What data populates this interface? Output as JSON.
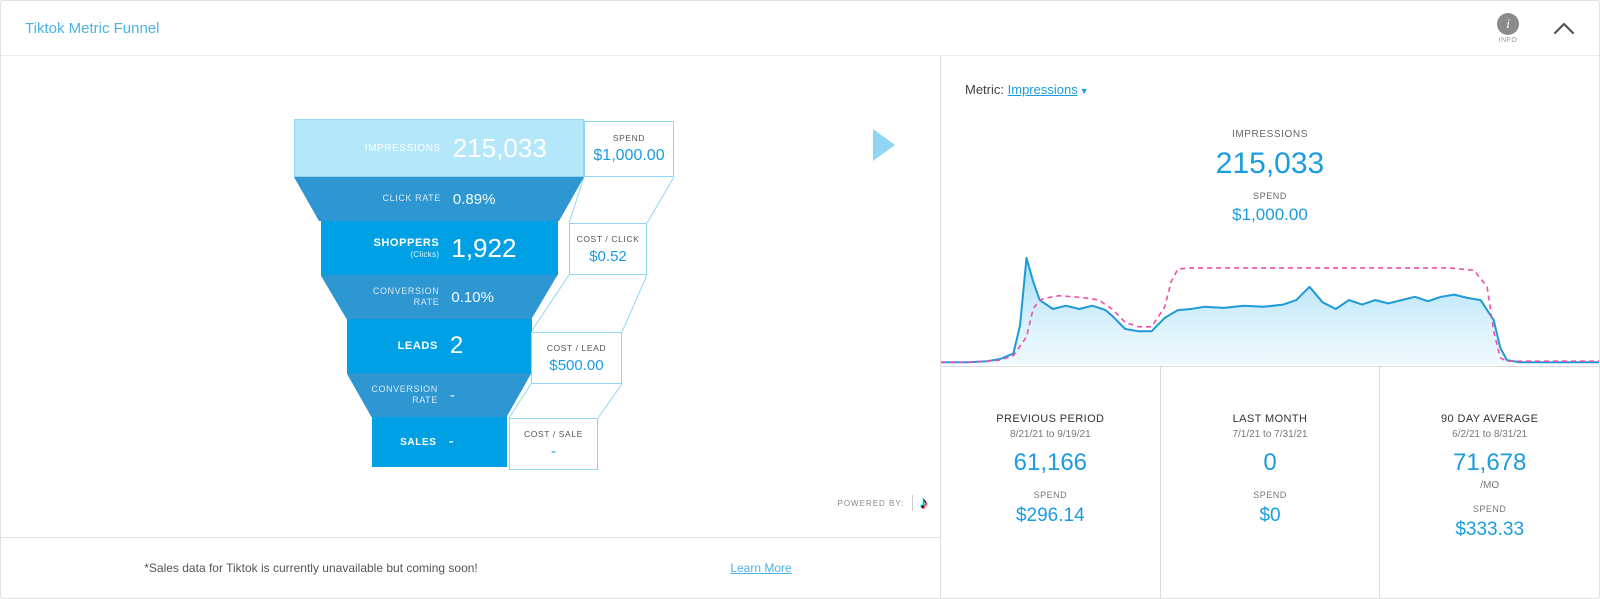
{
  "header": {
    "title": "Tiktok Metric Funnel",
    "info_label": "INFO"
  },
  "funnel": {
    "rows": [
      {
        "type": "metric",
        "label": "IMPRESSIONS",
        "value": "215,033"
      },
      {
        "type": "rate",
        "label": "CLICK RATE",
        "value": "0.89%"
      },
      {
        "type": "metric",
        "label": "SHOPPERS",
        "sublabel": "(Clicks)",
        "value": "1,922"
      },
      {
        "type": "rate",
        "label": "CONVERSION RATE",
        "value": "0.10%"
      },
      {
        "type": "metric",
        "label": "LEADS",
        "value": "2"
      },
      {
        "type": "rate",
        "label": "CONVERSION RATE",
        "value": "-"
      },
      {
        "type": "metric",
        "label": "SALES",
        "value": "-"
      }
    ],
    "cost_boxes": [
      {
        "label": "SPEND",
        "value": "$1,000.00"
      },
      {
        "label": "COST / CLICK",
        "value": "$0.52"
      },
      {
        "label": "COST / LEAD",
        "value": "$500.00"
      },
      {
        "label": "COST / SALE",
        "value": "-"
      }
    ],
    "powered_by": "POWERED BY:"
  },
  "left_footer": {
    "note": "*Sales data for Tiktok is currently unavailable but coming soon!",
    "link": "Learn More"
  },
  "detail": {
    "metric_label": "Metric:",
    "metric_value": "Impressions",
    "summary": {
      "label": "IMPRESSIONS",
      "value": "215,033",
      "spend_label": "SPEND",
      "spend_value": "$1,000.00"
    },
    "stats": [
      {
        "title": "PREVIOUS PERIOD",
        "range": "8/21/21 to 9/19/21",
        "value": "61,166",
        "unit": "",
        "spend_label": "SPEND",
        "spend": "$296.14"
      },
      {
        "title": "LAST MONTH",
        "range": "7/1/21 to 7/31/21",
        "value": "0",
        "unit": "",
        "spend_label": "SPEND",
        "spend": "$0"
      },
      {
        "title": "90 DAY AVERAGE",
        "range": "6/2/21 to 8/31/21",
        "value": "71,678",
        "unit": "/MO",
        "spend_label": "SPEND",
        "spend": "$333.33"
      }
    ]
  },
  "chart_data": {
    "type": "area",
    "title": "",
    "xlabel": "",
    "ylabel": "",
    "ylim": [
      0,
      100
    ],
    "grid": false,
    "legend": "none",
    "axes_visible": false,
    "series": [
      {
        "name": "impressions",
        "color": "#1e9ad6",
        "width": 2,
        "fill": true,
        "points": [
          [
            0,
            2
          ],
          [
            4,
            2
          ],
          [
            7,
            3
          ],
          [
            9,
            5
          ],
          [
            11,
            10
          ],
          [
            12,
            35
          ],
          [
            13,
            96
          ],
          [
            14,
            75
          ],
          [
            15,
            58
          ],
          [
            17,
            50
          ],
          [
            19,
            53
          ],
          [
            21,
            50
          ],
          [
            23,
            53
          ],
          [
            25,
            49
          ],
          [
            26,
            44
          ],
          [
            28,
            32
          ],
          [
            30,
            30
          ],
          [
            32,
            30
          ],
          [
            34,
            42
          ],
          [
            36,
            49
          ],
          [
            38,
            50
          ],
          [
            40,
            52
          ],
          [
            43,
            51
          ],
          [
            46,
            53
          ],
          [
            49,
            52
          ],
          [
            52,
            54
          ],
          [
            54,
            58
          ],
          [
            56,
            70
          ],
          [
            58,
            56
          ],
          [
            60,
            50
          ],
          [
            62,
            58
          ],
          [
            64,
            54
          ],
          [
            66,
            58
          ],
          [
            68,
            55
          ],
          [
            70,
            58
          ],
          [
            72,
            61
          ],
          [
            74,
            57
          ],
          [
            76,
            61
          ],
          [
            78,
            63
          ],
          [
            80,
            60
          ],
          [
            82,
            58
          ],
          [
            84,
            40
          ],
          [
            85,
            15
          ],
          [
            86,
            4
          ],
          [
            88,
            2
          ],
          [
            92,
            2
          ],
          [
            100,
            2
          ]
        ]
      },
      {
        "name": "comparison-period",
        "color": "#ef4fa6",
        "width": 1.6,
        "dash": "5,4",
        "fill": false,
        "points": [
          [
            0,
            2
          ],
          [
            4,
            2
          ],
          [
            7,
            3
          ],
          [
            9,
            4
          ],
          [
            11,
            8
          ],
          [
            13,
            25
          ],
          [
            14,
            50
          ],
          [
            15,
            58
          ],
          [
            16,
            60
          ],
          [
            18,
            62
          ],
          [
            20,
            61
          ],
          [
            22,
            60
          ],
          [
            24,
            58
          ],
          [
            26,
            50
          ],
          [
            28,
            38
          ],
          [
            30,
            34
          ],
          [
            32,
            34
          ],
          [
            34,
            52
          ],
          [
            35,
            75
          ],
          [
            36,
            86
          ],
          [
            38,
            87
          ],
          [
            42,
            87
          ],
          [
            46,
            87
          ],
          [
            50,
            87
          ],
          [
            54,
            87
          ],
          [
            58,
            87
          ],
          [
            62,
            87
          ],
          [
            66,
            87
          ],
          [
            70,
            87
          ],
          [
            74,
            87
          ],
          [
            77,
            87
          ],
          [
            79,
            86
          ],
          [
            81,
            85
          ],
          [
            83,
            70
          ],
          [
            84,
            30
          ],
          [
            85,
            6
          ],
          [
            86,
            3
          ],
          [
            90,
            3
          ],
          [
            100,
            3
          ]
        ]
      }
    ]
  },
  "colors": {
    "accent_blue": "#1b9ce0",
    "title_blue": "#4db3e6",
    "funnel_light": "#b5e7fa",
    "funnel_mid": "#2e96d1",
    "funnel_bright": "#00a1e4",
    "chart_line": "#1e9ad6",
    "chart_dashed": "#ef4fa6"
  }
}
